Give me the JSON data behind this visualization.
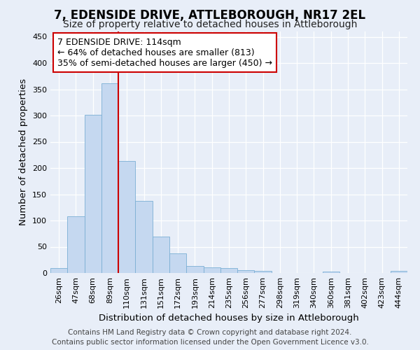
{
  "title": "7, EDENSIDE DRIVE, ATTLEBOROUGH, NR17 2EL",
  "subtitle": "Size of property relative to detached houses in Attleborough",
  "xlabel": "Distribution of detached houses by size in Attleborough",
  "ylabel": "Number of detached properties",
  "categories": [
    "26sqm",
    "47sqm",
    "68sqm",
    "89sqm",
    "110sqm",
    "131sqm",
    "151sqm",
    "172sqm",
    "193sqm",
    "214sqm",
    "235sqm",
    "256sqm",
    "277sqm",
    "298sqm",
    "319sqm",
    "340sqm",
    "360sqm",
    "381sqm",
    "402sqm",
    "423sqm",
    "444sqm"
  ],
  "values": [
    9,
    108,
    302,
    362,
    213,
    137,
    69,
    38,
    13,
    11,
    10,
    6,
    4,
    0,
    0,
    0,
    3,
    0,
    0,
    0,
    4
  ],
  "bar_color": "#c5d8f0",
  "bar_edge_color": "#7bafd4",
  "vline_index": 4,
  "vline_color": "#cc0000",
  "annotation_title": "7 EDENSIDE DRIVE: 114sqm",
  "annotation_line1": "← 64% of detached houses are smaller (813)",
  "annotation_line2": "35% of semi-detached houses are larger (450) →",
  "annotation_box_color": "white",
  "annotation_box_edge": "#cc0000",
  "ylim": [
    0,
    460
  ],
  "yticks": [
    0,
    50,
    100,
    150,
    200,
    250,
    300,
    350,
    400,
    450
  ],
  "footer1": "Contains HM Land Registry data © Crown copyright and database right 2024.",
  "footer2": "Contains public sector information licensed under the Open Government Licence v3.0.",
  "bg_color": "#e8eef8",
  "plot_bg_color": "#e8eef8",
  "title_fontsize": 12,
  "subtitle_fontsize": 10,
  "axis_label_fontsize": 9.5,
  "tick_fontsize": 8,
  "footer_fontsize": 7.5,
  "annot_fontsize": 9
}
